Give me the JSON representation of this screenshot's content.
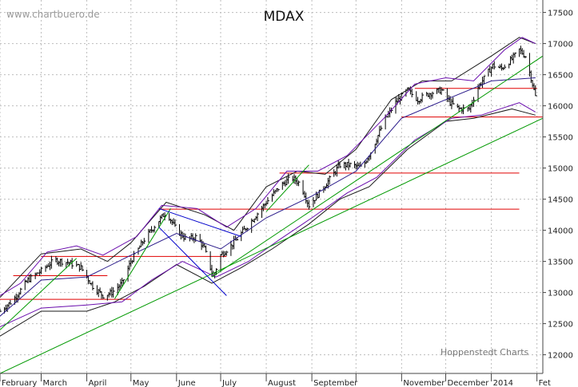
{
  "watermark": "www.chartbuero.de",
  "credit": "Hoppenstedt Charts",
  "chart_data": {
    "type": "line",
    "title": "MDAX",
    "xlabel": "",
    "ylabel": "",
    "x_range": [
      "2013-02-01",
      "2014-02-05"
    ],
    "ylim": [
      11700,
      17700
    ],
    "y_ticks": [
      12000,
      12500,
      13000,
      13500,
      14000,
      14500,
      15000,
      15500,
      16000,
      16500,
      17000,
      17500
    ],
    "y_tick_labels": [
      "12000",
      "12500",
      "13000",
      "13500",
      "14000",
      "14500",
      "15000",
      "15500",
      "16000",
      "16500",
      "17000",
      "17500"
    ],
    "x_ticks": [
      {
        "date": "2013-02-01",
        "label": "February"
      },
      {
        "date": "2013-03-01",
        "label": "March"
      },
      {
        "date": "2013-04-01",
        "label": "April"
      },
      {
        "date": "2013-05-01",
        "label": "May"
      },
      {
        "date": "2013-06-01",
        "label": "June"
      },
      {
        "date": "2013-07-01",
        "label": "July"
      },
      {
        "date": "2013-08-01",
        "label": "August"
      },
      {
        "date": "2013-09-01",
        "label": "September"
      },
      {
        "date": "2013-10-01",
        "label": ""
      },
      {
        "date": "2013-11-01",
        "label": "November"
      },
      {
        "date": "2013-12-01",
        "label": "December"
      },
      {
        "date": "2014-01-01",
        "label": "2014"
      },
      {
        "date": "2014-02-01",
        "label": "Fet"
      }
    ],
    "grid": true,
    "series": [
      {
        "style": "ohlc-bars",
        "color": "#000000",
        "points": [
          {
            "x": "2013-02-01",
            "y": 12700
          },
          {
            "x": "2013-02-10",
            "y": 12880
          },
          {
            "x": "2013-02-20",
            "y": 13200
          },
          {
            "x": "2013-03-01",
            "y": 13350
          },
          {
            "x": "2013-03-10",
            "y": 13520
          },
          {
            "x": "2013-03-20",
            "y": 13480
          },
          {
            "x": "2013-03-28",
            "y": 13400
          },
          {
            "x": "2013-04-05",
            "y": 13100
          },
          {
            "x": "2013-04-12",
            "y": 12950
          },
          {
            "x": "2013-04-18",
            "y": 13000
          },
          {
            "x": "2013-04-25",
            "y": 13150
          },
          {
            "x": "2013-05-01",
            "y": 13500
          },
          {
            "x": "2013-05-10",
            "y": 13850
          },
          {
            "x": "2013-05-18",
            "y": 14100
          },
          {
            "x": "2013-05-25",
            "y": 14300
          },
          {
            "x": "2013-06-01",
            "y": 14000
          },
          {
            "x": "2013-06-08",
            "y": 13850
          },
          {
            "x": "2013-06-15",
            "y": 13900
          },
          {
            "x": "2013-06-20",
            "y": 13700
          },
          {
            "x": "2013-06-26",
            "y": 13250
          },
          {
            "x": "2013-07-01",
            "y": 13600
          },
          {
            "x": "2013-07-08",
            "y": 13750
          },
          {
            "x": "2013-07-15",
            "y": 13950
          },
          {
            "x": "2013-07-22",
            "y": 14150
          },
          {
            "x": "2013-08-01",
            "y": 14450
          },
          {
            "x": "2013-08-10",
            "y": 14700
          },
          {
            "x": "2013-08-18",
            "y": 14850
          },
          {
            "x": "2013-08-24",
            "y": 14750
          },
          {
            "x": "2013-08-30",
            "y": 14400
          },
          {
            "x": "2013-09-06",
            "y": 14600
          },
          {
            "x": "2013-09-14",
            "y": 14850
          },
          {
            "x": "2013-09-20",
            "y": 15050
          },
          {
            "x": "2013-09-28",
            "y": 15050
          },
          {
            "x": "2013-10-05",
            "y": 15000
          },
          {
            "x": "2013-10-12",
            "y": 15300
          },
          {
            "x": "2013-10-20",
            "y": 15750
          },
          {
            "x": "2013-10-28",
            "y": 16050
          },
          {
            "x": "2013-11-05",
            "y": 16250
          },
          {
            "x": "2013-11-12",
            "y": 16100
          },
          {
            "x": "2013-11-20",
            "y": 16200
          },
          {
            "x": "2013-11-28",
            "y": 16250
          },
          {
            "x": "2013-12-04",
            "y": 16050
          },
          {
            "x": "2013-12-10",
            "y": 15950
          },
          {
            "x": "2013-12-17",
            "y": 15950
          },
          {
            "x": "2013-12-23",
            "y": 16300
          },
          {
            "x": "2014-01-02",
            "y": 16650
          },
          {
            "x": "2014-01-08",
            "y": 16600
          },
          {
            "x": "2014-01-15",
            "y": 16750
          },
          {
            "x": "2014-01-20",
            "y": 16900
          },
          {
            "x": "2014-01-24",
            "y": 16800
          },
          {
            "x": "2014-01-28",
            "y": 16450
          },
          {
            "x": "2014-01-31",
            "y": 16150
          }
        ]
      },
      {
        "style": "line",
        "color": "#1a1a1a",
        "points": [
          {
            "x": "2013-02-01",
            "y": 12920
          },
          {
            "x": "2013-03-01",
            "y": 13620
          },
          {
            "x": "2013-03-28",
            "y": 13700
          },
          {
            "x": "2013-04-15",
            "y": 13500
          },
          {
            "x": "2013-05-01",
            "y": 13800
          },
          {
            "x": "2013-05-25",
            "y": 14450
          },
          {
            "x": "2013-06-20",
            "y": 14250
          },
          {
            "x": "2013-07-10",
            "y": 14000
          },
          {
            "x": "2013-08-01",
            "y": 14700
          },
          {
            "x": "2013-08-22",
            "y": 14950
          },
          {
            "x": "2013-09-10",
            "y": 14900
          },
          {
            "x": "2013-10-01",
            "y": 15300
          },
          {
            "x": "2013-10-25",
            "y": 16100
          },
          {
            "x": "2013-11-15",
            "y": 16400
          },
          {
            "x": "2013-12-05",
            "y": 16400
          },
          {
            "x": "2014-01-01",
            "y": 16800
          },
          {
            "x": "2014-01-20",
            "y": 17100
          },
          {
            "x": "2014-01-31",
            "y": 17000
          }
        ]
      },
      {
        "style": "line",
        "color": "#1a1a1a",
        "points": [
          {
            "x": "2013-02-01",
            "y": 12300
          },
          {
            "x": "2013-03-01",
            "y": 12700
          },
          {
            "x": "2013-04-01",
            "y": 12700
          },
          {
            "x": "2013-04-20",
            "y": 12850
          },
          {
            "x": "2013-05-10",
            "y": 13100
          },
          {
            "x": "2013-06-01",
            "y": 13450
          },
          {
            "x": "2013-06-25",
            "y": 13150
          },
          {
            "x": "2013-07-15",
            "y": 13400
          },
          {
            "x": "2013-08-05",
            "y": 13700
          },
          {
            "x": "2013-08-30",
            "y": 14100
          },
          {
            "x": "2013-09-20",
            "y": 14500
          },
          {
            "x": "2013-10-10",
            "y": 14700
          },
          {
            "x": "2013-11-05",
            "y": 15300
          },
          {
            "x": "2013-12-01",
            "y": 15750
          },
          {
            "x": "2013-12-20",
            "y": 15800
          },
          {
            "x": "2014-01-15",
            "y": 15950
          },
          {
            "x": "2014-01-31",
            "y": 15850
          }
        ]
      },
      {
        "style": "line",
        "color": "#2a1a8a",
        "points": [
          {
            "x": "2013-02-01",
            "y": 12620
          },
          {
            "x": "2013-03-01",
            "y": 13200
          },
          {
            "x": "2013-04-01",
            "y": 13250
          },
          {
            "x": "2013-05-01",
            "y": 13600
          },
          {
            "x": "2013-06-01",
            "y": 13950
          },
          {
            "x": "2013-07-01",
            "y": 13700
          },
          {
            "x": "2013-08-01",
            "y": 14200
          },
          {
            "x": "2013-09-01",
            "y": 14550
          },
          {
            "x": "2013-10-01",
            "y": 14950
          },
          {
            "x": "2013-11-01",
            "y": 15800
          },
          {
            "x": "2013-12-01",
            "y": 16100
          },
          {
            "x": "2014-01-01",
            "y": 16400
          },
          {
            "x": "2014-01-31",
            "y": 16450
          }
        ]
      },
      {
        "style": "line",
        "color": "#6a0dad",
        "points": [
          {
            "x": "2013-02-01",
            "y": 12950
          },
          {
            "x": "2013-02-15",
            "y": 13150
          },
          {
            "x": "2013-03-05",
            "y": 13650
          },
          {
            "x": "2013-03-25",
            "y": 13750
          },
          {
            "x": "2013-04-12",
            "y": 13600
          },
          {
            "x": "2013-05-05",
            "y": 13900
          },
          {
            "x": "2013-05-22",
            "y": 14400
          },
          {
            "x": "2013-06-15",
            "y": 14350
          },
          {
            "x": "2013-07-05",
            "y": 14050
          },
          {
            "x": "2013-07-25",
            "y": 14350
          },
          {
            "x": "2013-08-15",
            "y": 14950
          },
          {
            "x": "2013-09-05",
            "y": 14950
          },
          {
            "x": "2013-09-25",
            "y": 15200
          },
          {
            "x": "2013-10-20",
            "y": 15800
          },
          {
            "x": "2013-11-10",
            "y": 16350
          },
          {
            "x": "2013-12-01",
            "y": 16450
          },
          {
            "x": "2013-12-20",
            "y": 16400
          },
          {
            "x": "2014-01-10",
            "y": 16900
          },
          {
            "x": "2014-01-22",
            "y": 17100
          },
          {
            "x": "2014-01-31",
            "y": 17000
          }
        ]
      },
      {
        "style": "line",
        "color": "#6a0dad",
        "points": [
          {
            "x": "2013-02-01",
            "y": 12450
          },
          {
            "x": "2013-03-01",
            "y": 12750
          },
          {
            "x": "2013-04-01",
            "y": 12800
          },
          {
            "x": "2013-04-25",
            "y": 12850
          },
          {
            "x": "2013-05-15",
            "y": 13200
          },
          {
            "x": "2013-06-05",
            "y": 13500
          },
          {
            "x": "2013-06-28",
            "y": 13250
          },
          {
            "x": "2013-07-20",
            "y": 13500
          },
          {
            "x": "2013-08-10",
            "y": 13850
          },
          {
            "x": "2013-09-01",
            "y": 14200
          },
          {
            "x": "2013-09-25",
            "y": 14600
          },
          {
            "x": "2013-10-15",
            "y": 14850
          },
          {
            "x": "2013-11-10",
            "y": 15450
          },
          {
            "x": "2013-12-05",
            "y": 15800
          },
          {
            "x": "2013-12-25",
            "y": 15850
          },
          {
            "x": "2014-01-20",
            "y": 16050
          },
          {
            "x": "2014-01-31",
            "y": 15900
          }
        ]
      }
    ],
    "horizontal_lines": [
      {
        "y": 12890,
        "x0": "2013-02-01",
        "x1": "2013-05-01",
        "color": "#e00000"
      },
      {
        "y": 13270,
        "x0": "2013-02-10",
        "x1": "2013-04-15",
        "color": "#e00000"
      },
      {
        "y": 13580,
        "x0": "2013-03-01",
        "x1": "2013-07-05",
        "color": "#e00000"
      },
      {
        "y": 14340,
        "x0": "2013-05-20",
        "x1": "2014-01-20",
        "color": "#e00000"
      },
      {
        "y": 14920,
        "x0": "2013-08-10",
        "x1": "2014-01-20",
        "color": "#e00000"
      },
      {
        "y": 15820,
        "x0": "2013-11-01",
        "x1": "2014-02-05",
        "color": "#e00000"
      },
      {
        "y": 16280,
        "x0": "2013-11-10",
        "x1": "2014-02-01",
        "color": "#e00000"
      }
    ],
    "trend_lines": [
      {
        "from": {
          "x": "2013-02-01",
          "y": 11700
        },
        "to": {
          "x": "2014-02-05",
          "y": 15800
        },
        "color": "#009900"
      },
      {
        "from": {
          "x": "2013-02-01",
          "y": 12400
        },
        "to": {
          "x": "2013-03-25",
          "y": 13550
        },
        "color": "#009900"
      },
      {
        "from": {
          "x": "2013-04-20",
          "y": 12900
        },
        "to": {
          "x": "2013-05-28",
          "y": 14350
        },
        "color": "#009900"
      },
      {
        "from": {
          "x": "2013-06-25",
          "y": 13250
        },
        "to": {
          "x": "2014-02-05",
          "y": 16800
        },
        "color": "#009900"
      },
      {
        "from": {
          "x": "2013-08-01",
          "y": 14300
        },
        "to": {
          "x": "2013-08-30",
          "y": 15050
        },
        "color": "#009900"
      },
      {
        "from": {
          "x": "2013-05-20",
          "y": 14350
        },
        "to": {
          "x": "2013-07-15",
          "y": 13900
        },
        "color": "#0000cc"
      },
      {
        "from": {
          "x": "2013-05-20",
          "y": 14050
        },
        "to": {
          "x": "2013-07-05",
          "y": 12950
        },
        "color": "#0000cc"
      }
    ]
  }
}
